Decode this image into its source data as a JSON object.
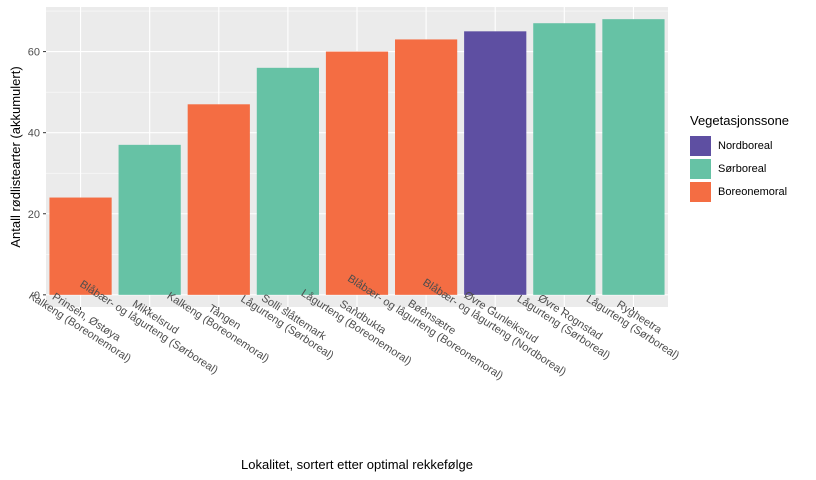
{
  "chart_data": {
    "type": "bar",
    "xlabel": "Lokalitet, sortert etter optimal rekkefølge",
    "ylabel": "Antall rødlistearter (akkumulert)",
    "ylim": [
      -3,
      71
    ],
    "yticks": [
      0,
      20,
      40,
      60
    ],
    "grid": true,
    "legend_position": "right",
    "categories": [
      [
        "Prinsen, Østøya",
        "Kalkeng (Boreonemoral)"
      ],
      [
        "Mikkelsrud",
        "Blåbær- og lågurteng (Sørboreal)"
      ],
      [
        "Tangen",
        "Kalkeng (Boreonemoral)"
      ],
      [
        "Solli slåttemark",
        "Lågurteng (Sørboreal)"
      ],
      [
        "Sandbukta",
        "Lågurteng (Boreonemoral)"
      ],
      [
        "Bøensætre",
        "Blåbær- og lågurteng (Boreonemoral)"
      ],
      [
        "Øvre Gunleiksrud",
        "Blåbær- og lågurteng (Nordboreal)"
      ],
      [
        "Øvre Rognstad",
        "Lågurteng (Sørboreal)"
      ],
      [
        "Rygheetra",
        "Lågurteng (Sørboreal)"
      ]
    ],
    "values": [
      24,
      37,
      47,
      56,
      60,
      63,
      65,
      67,
      68
    ],
    "groups": [
      "Boreonemoral",
      "Sørboreal",
      "Boreonemoral",
      "Sørboreal",
      "Boreonemoral",
      "Boreonemoral",
      "Nordboreal",
      "Sørboreal",
      "Sørboreal"
    ],
    "legend": {
      "title": "Vegetasjonssone",
      "items": [
        {
          "label": "Nordboreal",
          "color": "#5E4FA2"
        },
        {
          "label": "Sørboreal",
          "color": "#66C2A5"
        },
        {
          "label": "Boreonemoral",
          "color": "#F46D43"
        }
      ]
    },
    "colors": {
      "panel_bg": "#EBEBEB",
      "grid_major": "#FFFFFF"
    }
  }
}
